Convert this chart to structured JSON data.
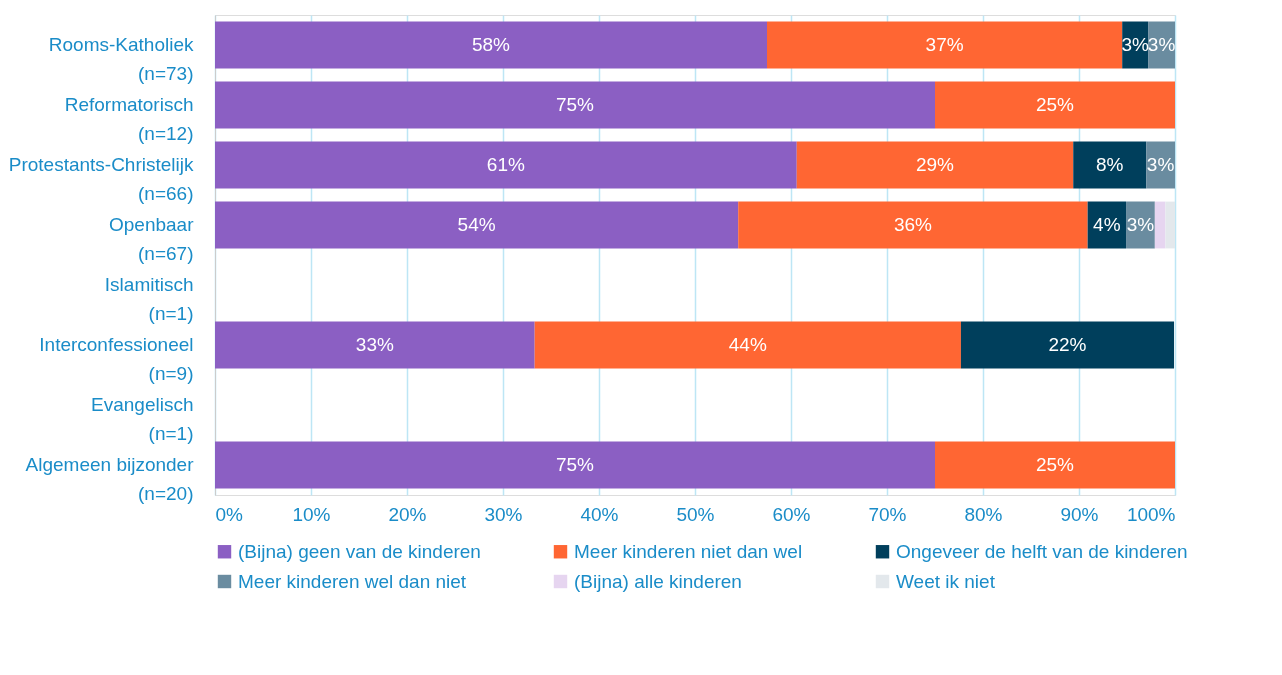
{
  "chart_data": {
    "type": "bar",
    "orientation": "horizontal",
    "stacked": true,
    "categories": [
      "Rooms-Katholiek\n(n=73)",
      "Reformatorisch\n(n=12)",
      "Protestants-Christelijk\n(n=66)",
      "Openbaar\n(n=67)",
      "Islamitisch\n(n=1)",
      "Interconfessioneel\n(n=9)",
      "Evangelisch\n(n=1)",
      "Algemeen bijzonder\n(n=20)"
    ],
    "series": [
      {
        "name": "(Bijna) geen van de kinderen",
        "color": "#8b5fc3",
        "values": [
          57.5,
          75,
          60.6,
          54.5,
          null,
          33.3,
          null,
          75
        ],
        "value_labels": [
          "58%",
          "75%",
          "61%",
          "54%",
          null,
          "33%",
          null,
          "75%"
        ]
      },
      {
        "name": "Meer kinderen niet dan wel",
        "color": "#ff6633",
        "values": [
          37.0,
          25,
          28.8,
          36.4,
          null,
          44.4,
          null,
          25
        ],
        "value_labels": [
          "37%",
          "25%",
          "29%",
          "36%",
          null,
          "44%",
          null,
          "25%"
        ]
      },
      {
        "name": "Ongeveer de helft van de kinderen",
        "color": "#003f5c",
        "values": [
          2.7,
          null,
          7.6,
          4.0,
          null,
          22.2,
          null,
          null
        ],
        "value_labels": [
          "3%",
          null,
          "8%",
          "4%",
          null,
          "22%",
          null,
          null
        ]
      },
      {
        "name": "Meer kinderen wel dan niet",
        "color": "#6a8ca0",
        "values": [
          2.8,
          null,
          3.0,
          3.0,
          null,
          null,
          null,
          null
        ],
        "value_labels": [
          "3%",
          null,
          "3%",
          "3%",
          null,
          null,
          null,
          null
        ]
      },
      {
        "name": "(Bijna) alle kinderen",
        "color": "#e6d5f0",
        "values": [
          null,
          null,
          null,
          1.1,
          null,
          null,
          null,
          null
        ],
        "value_labels": [
          null,
          null,
          null,
          null,
          null,
          null,
          null,
          null
        ]
      },
      {
        "name": "Weet ik niet",
        "color": "#e3e8ec",
        "values": [
          null,
          null,
          null,
          1.0,
          null,
          null,
          null,
          null
        ],
        "value_labels": [
          null,
          null,
          null,
          null,
          null,
          null,
          null,
          null
        ]
      }
    ],
    "xlim": [
      0,
      100
    ],
    "xticks": [
      {
        "value": 0,
        "label": "0%"
      },
      {
        "value": 10,
        "label": "10%"
      },
      {
        "value": 20,
        "label": "20%"
      },
      {
        "value": 30,
        "label": "30%"
      },
      {
        "value": 40,
        "label": "40%"
      },
      {
        "value": 50,
        "label": "50%"
      },
      {
        "value": 60,
        "label": "60%"
      },
      {
        "value": 70,
        "label": "70%"
      },
      {
        "value": 80,
        "label": "80%"
      },
      {
        "value": 90,
        "label": "90%"
      },
      {
        "value": 100,
        "label": "100%"
      }
    ],
    "grid": "x",
    "legend": "bottom"
  }
}
